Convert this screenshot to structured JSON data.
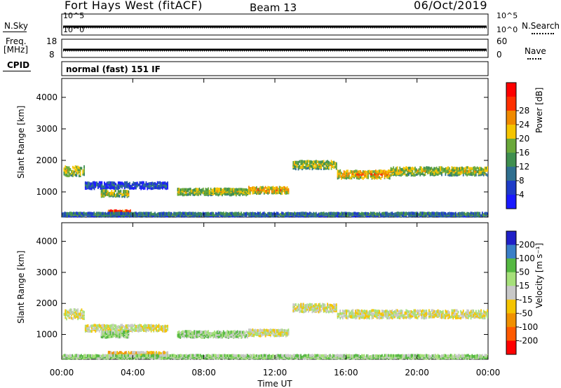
{
  "header": {
    "title": "Fort Hays West (fitACF)",
    "beam": "Beam 13",
    "date": "06/Oct/2019"
  },
  "top_panels": {
    "nsky_label": "N.Sky",
    "nsearch_label": "N.Search",
    "noise_ticks": [
      "10^5",
      "10^0"
    ],
    "freq_label_line1": "Freq.",
    "freq_label_line2": "[MHz]",
    "freq_ticks": [
      "18",
      "8"
    ],
    "nave_label": "Nave",
    "nave_ticks": [
      "60",
      "0"
    ],
    "cpid_label": "CPID",
    "cpid_text": "normal (fast) 151 IF"
  },
  "colors": {
    "power_scale": [
      "#1a1aff",
      "#1e3cc8",
      "#2f6f8f",
      "#3f8f4f",
      "#6aa83a",
      "#f5c400",
      "#f08a00",
      "#ff3000",
      "#ff0000"
    ],
    "velocity_scale": [
      "#2020c8",
      "#3a7fc8",
      "#55b842",
      "#a6e07a",
      "#c8c8c8",
      "#f5c400",
      "#f09000",
      "#ff5a00",
      "#ff0000"
    ]
  },
  "chart_data": [
    {
      "type": "heatmap",
      "name_panel": "power",
      "ylabel": "Slant Range [km]",
      "yticks": [
        "1000",
        "2000",
        "3000",
        "4000"
      ],
      "ylim": [
        200,
        4600
      ],
      "xlim_hours": [
        0,
        24
      ],
      "colorbar_label": "Power [dB]",
      "colorbar_ticks": [
        "4",
        "8",
        "12",
        "16",
        "20",
        "24",
        "28"
      ],
      "echo_bands": [
        {
          "t0": 0.1,
          "t1": 1.3,
          "r_center": 1650,
          "r_width": 300,
          "level": 5
        },
        {
          "t0": 1.3,
          "t1": 6.0,
          "r_center": 1200,
          "r_width": 200,
          "level": 2
        },
        {
          "t0": 2.2,
          "t1": 3.8,
          "r_center": 950,
          "r_width": 200,
          "level": 5
        },
        {
          "t0": 2.6,
          "t1": 3.9,
          "r_center": 330,
          "r_width": 150,
          "level": 8
        },
        {
          "t0": 6.5,
          "t1": 10.5,
          "r_center": 1000,
          "r_width": 200,
          "level": 5
        },
        {
          "t0": 10.5,
          "t1": 12.8,
          "r_center": 1050,
          "r_width": 200,
          "level": 6
        },
        {
          "t0": 13.0,
          "t1": 15.5,
          "r_center": 1850,
          "r_width": 250,
          "level": 5
        },
        {
          "t0": 15.5,
          "t1": 18.5,
          "r_center": 1550,
          "r_width": 250,
          "level": 6
        },
        {
          "t0": 18.5,
          "t1": 24.0,
          "r_center": 1650,
          "r_width": 250,
          "level": 5
        },
        {
          "t0": 0.0,
          "t1": 24.0,
          "r_center": 280,
          "r_width": 100,
          "level": 3
        }
      ]
    },
    {
      "type": "heatmap",
      "name_panel": "velocity",
      "ylabel": "Slant Range [km]",
      "yticks": [
        "1000",
        "2000",
        "3000",
        "4000"
      ],
      "ylim": [
        200,
        4600
      ],
      "xlim_hours": [
        0,
        24
      ],
      "xlabel": "Time UT",
      "xticks": [
        "00:00",
        "04:00",
        "08:00",
        "12:00",
        "16:00",
        "20:00",
        "00:00"
      ],
      "colorbar_label": "Velocity [m s⁻¹]",
      "colorbar_ticks": [
        "200",
        "100",
        "50",
        "15",
        "-15",
        "-50",
        "-100",
        "-200"
      ],
      "echo_bands": [
        {
          "t0": 0.1,
          "t1": 1.3,
          "r_center": 1650,
          "r_width": 300,
          "level": 4
        },
        {
          "t0": 1.3,
          "t1": 6.0,
          "r_center": 1200,
          "r_width": 200,
          "level": 4
        },
        {
          "t0": 2.2,
          "t1": 3.8,
          "r_center": 1000,
          "r_width": 200,
          "level": 3
        },
        {
          "t0": 2.6,
          "t1": 6.0,
          "r_center": 360,
          "r_width": 140,
          "level": 5
        },
        {
          "t0": 6.5,
          "t1": 10.5,
          "r_center": 1000,
          "r_width": 200,
          "level": 3
        },
        {
          "t0": 10.5,
          "t1": 12.8,
          "r_center": 1050,
          "r_width": 200,
          "level": 4
        },
        {
          "t0": 13.0,
          "t1": 15.5,
          "r_center": 1850,
          "r_width": 250,
          "level": 4
        },
        {
          "t0": 15.5,
          "t1": 24.0,
          "r_center": 1650,
          "r_width": 250,
          "level": 4
        },
        {
          "t0": 0.0,
          "t1": 24.0,
          "r_center": 280,
          "r_width": 100,
          "level": 3
        }
      ]
    }
  ]
}
